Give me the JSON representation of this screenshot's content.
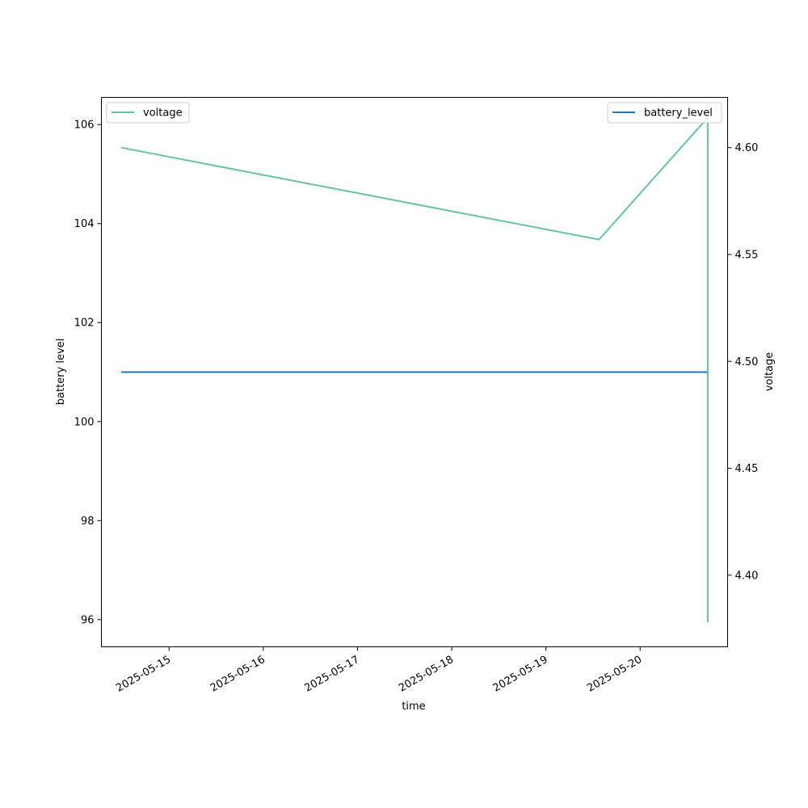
{
  "chart_data": {
    "type": "line",
    "xlabel": "time",
    "ylabel_left": "battery level",
    "ylabel_right": "voltage",
    "x_ticks": [
      "2025-05-15",
      "2025-05-16",
      "2025-05-17",
      "2025-05-18",
      "2025-05-19",
      "2025-05-20"
    ],
    "y_left_ticks": [
      96,
      98,
      100,
      102,
      104,
      106
    ],
    "y_right_ticks": [
      "4.40",
      "4.45",
      "4.50",
      "4.55",
      "4.60"
    ],
    "x_range": [
      "2025-05-14T06:46",
      "2025-05-20T22:17"
    ],
    "y_left_range": [
      95.45,
      106.55
    ],
    "y_right_range": [
      4.3665,
      4.6235
    ],
    "series": [
      {
        "name": "battery_level",
        "axis": "left",
        "color": "#1f77b4",
        "points": [
          {
            "x": "2025-05-14T11:50",
            "y": 101
          },
          {
            "x": "2025-05-20T17:13",
            "y": 101
          }
        ]
      },
      {
        "name": "voltage",
        "axis": "right",
        "color": "#66c2a5",
        "points": [
          {
            "x": "2025-05-14T11:50",
            "y": 4.6
          },
          {
            "x": "2025-05-19T13:32",
            "y": 4.557
          },
          {
            "x": "2025-05-20T17:13",
            "y": 4.614
          },
          {
            "x": "2025-05-20T17:13",
            "y": 4.378
          }
        ]
      }
    ],
    "legends": [
      {
        "series": "voltage",
        "placement": "upper-left"
      },
      {
        "series": "battery_level",
        "placement": "upper-right"
      }
    ]
  }
}
